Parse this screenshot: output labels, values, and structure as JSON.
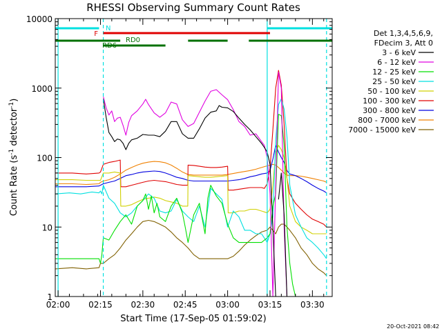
{
  "chart_data": {
    "type": "line",
    "title": "RHESSI Observing Summary Count Rates",
    "xlabel": "Start Time (17-Sep-05 01:59:02)",
    "ylabel": "Count Rate (s^-1 detector^-1)",
    "ylabel_main": "Count Rate (s",
    "ylabel_sup1": "-1",
    "ylabel_mid": " detector",
    "ylabel_sup2": "-1",
    "ylabel_end": ")",
    "x_tick_labels": [
      "02:00",
      "02:15",
      "02:30",
      "02:45",
      "03:00",
      "03:15",
      "03:30"
    ],
    "x_ticks_min": [
      0,
      15,
      30,
      45,
      60,
      75,
      90
    ],
    "xlim_min": [
      -1,
      97
    ],
    "y_scale": "log",
    "ylim": [
      1,
      10000
    ],
    "y_tick_labels": [
      "1",
      "10",
      "100",
      "1000",
      "10000"
    ],
    "y_tick_values": [
      1,
      10,
      100,
      1000,
      10000
    ],
    "timestamp": "20-Oct-2021 08:42",
    "legend": {
      "position": "right",
      "header": [
        "Det 1,3,4,5,6,9,",
        "FDecim 3, Att 0"
      ],
      "entries": [
        {
          "label": "3 - 6 keV",
          "color": "#000000"
        },
        {
          "label": "6 - 12 keV",
          "color": "#e000e0"
        },
        {
          "label": "12 - 25 keV",
          "color": "#00e000"
        },
        {
          "label": "25 - 50 keV",
          "color": "#00e0e0"
        },
        {
          "label": "50 - 100 keV",
          "color": "#d0d000"
        },
        {
          "label": "100 - 300 keV",
          "color": "#e00000"
        },
        {
          "label": "300 - 800 keV",
          "color": "#0000e0"
        },
        {
          "label": "800 - 7000 keV",
          "color": "#f08000"
        },
        {
          "label": "7000 - 15000 keV",
          "color": "#806000"
        }
      ]
    },
    "flag_bars": {
      "night": {
        "label": "N",
        "color": "#00e0e0",
        "segments": [
          [
            -1,
            14.5
          ],
          [
            74,
            97
          ]
        ]
      },
      "flare": {
        "label": "F",
        "color": "#e00000",
        "segments": [
          [
            16,
            75
          ]
        ]
      },
      "rd0": {
        "label": "RD0",
        "color": "#007000",
        "segments": [
          [
            -1,
            22
          ],
          [
            46,
            60
          ],
          [
            67.5,
            97
          ]
        ]
      },
      "rd6": {
        "label": "RD6",
        "color": "#007000",
        "segments": [
          [
            16,
            38
          ]
        ]
      }
    },
    "vertical_markers": [
      {
        "x": 0,
        "style": "solid",
        "color": "#00e0e0"
      },
      {
        "x": 16,
        "style": "dashed",
        "color": "#00e0e0"
      },
      {
        "x": 74,
        "style": "solid",
        "color": "#00e0e0"
      },
      {
        "x": 95,
        "style": "dashed",
        "color": "#00e0e0"
      }
    ],
    "series": [
      {
        "name": "3 - 6 keV",
        "color": "#000000",
        "x": [
          15.8,
          16,
          17,
          18,
          19,
          20,
          21,
          22,
          23,
          24,
          25,
          26,
          28,
          30,
          32,
          34,
          36,
          38,
          40,
          42,
          44,
          46,
          48,
          50,
          52,
          54,
          56,
          57,
          58,
          60,
          62,
          64,
          66,
          68,
          70,
          72,
          73,
          74,
          75,
          76,
          77,
          77.5,
          78,
          79,
          80,
          81
        ],
        "y": [
          null,
          700,
          380,
          230,
          200,
          170,
          185,
          180,
          160,
          130,
          160,
          180,
          190,
          215,
          210,
          210,
          200,
          240,
          330,
          330,
          220,
          190,
          190,
          260,
          370,
          450,
          470,
          560,
          530,
          520,
          460,
          370,
          300,
          250,
          200,
          160,
          140,
          120,
          80,
          10,
          1,
          null,
          25,
          60,
          15,
          1
        ]
      },
      {
        "name": "6 - 12 keV",
        "color": "#e000e0",
        "x": [
          15.8,
          16,
          17,
          18,
          19,
          20,
          21,
          22,
          23,
          24,
          25,
          26,
          28,
          30,
          31,
          32,
          34,
          36,
          38,
          40,
          42,
          44,
          46,
          48,
          50,
          52,
          54,
          56,
          58,
          60,
          62,
          64,
          66,
          68,
          70,
          72,
          73,
          74,
          75,
          76,
          77,
          78,
          79,
          80,
          81
        ],
        "y": [
          null,
          750,
          520,
          410,
          470,
          330,
          370,
          380,
          290,
          210,
          320,
          400,
          470,
          590,
          690,
          580,
          440,
          380,
          440,
          630,
          590,
          350,
          280,
          310,
          450,
          650,
          900,
          950,
          800,
          680,
          490,
          330,
          280,
          210,
          220,
          170,
          150,
          100,
          30,
          1,
          40,
          1700,
          1000,
          10,
          1
        ]
      },
      {
        "name": "12 - 25 keV",
        "color": "#00e000",
        "x": [
          -1,
          14.5,
          15,
          15.5,
          16,
          18,
          20,
          22,
          24,
          26,
          28,
          30,
          31,
          32,
          33,
          34,
          35,
          36,
          38,
          40,
          42,
          44,
          45,
          46,
          48,
          50,
          52,
          53,
          54,
          56,
          58,
          60,
          62,
          64,
          66,
          68,
          70,
          72,
          74,
          75,
          76,
          77,
          78,
          79,
          80,
          81,
          82,
          83,
          84,
          85
        ],
        "y": [
          3.5,
          3.5,
          3,
          4,
          7,
          6.5,
          9,
          12,
          15,
          11,
          20,
          24,
          30,
          18,
          28,
          16,
          22,
          14,
          12,
          20,
          26,
          16,
          10,
          6,
          15,
          22,
          8,
          26,
          40,
          28,
          22,
          11,
          7,
          6,
          6,
          6,
          6,
          6,
          7,
          8,
          20,
          30,
          420,
          400,
          150,
          10,
          3,
          1.5,
          1,
          null
        ]
      },
      {
        "name": "25 - 50 keV",
        "color": "#00e0e0",
        "x": [
          -1,
          4,
          8,
          12,
          14.5,
          15,
          15.5,
          16,
          18,
          20,
          22,
          24,
          26,
          28,
          30,
          32,
          34,
          36,
          38,
          40,
          42,
          44,
          46,
          48,
          50,
          52,
          54,
          56,
          58,
          60,
          62,
          64,
          66,
          68,
          70,
          72,
          74,
          75,
          76,
          77,
          78,
          79,
          80,
          81,
          82,
          84,
          86,
          88,
          90,
          92,
          94,
          95
        ],
        "y": [
          30,
          31,
          30,
          32,
          31,
          33,
          30,
          40,
          26,
          22,
          16,
          14,
          16,
          20,
          24,
          30,
          26,
          17,
          16,
          17,
          25,
          17,
          14,
          12,
          20,
          10,
          36,
          30,
          25,
          10,
          17,
          14,
          9,
          9,
          8,
          8,
          6,
          8,
          14,
          180,
          580,
          700,
          500,
          200,
          40,
          15,
          10,
          7,
          6,
          5,
          4,
          3.5
        ]
      },
      {
        "name": "50 - 100 keV",
        "color": "#d0d000",
        "x": [
          -1,
          5,
          10,
          14.5,
          15,
          16,
          18,
          20,
          22,
          22.2,
          24,
          26,
          28,
          30,
          32,
          34,
          36,
          38,
          40,
          42,
          44,
          45.9,
          46,
          48,
          50,
          52,
          54,
          56,
          58,
          60,
          60.2,
          62,
          64,
          66,
          68,
          70,
          72,
          74,
          75,
          76,
          77,
          78,
          79,
          80,
          81,
          82,
          84,
          86,
          88,
          90,
          92,
          94,
          95
        ],
        "y": [
          48,
          48,
          47,
          47,
          47,
          60,
          60,
          62,
          60,
          20,
          20,
          21,
          23,
          25,
          26,
          27,
          26,
          24,
          23,
          22,
          20,
          20,
          55,
          54,
          53,
          52,
          52,
          53,
          54,
          55,
          16,
          16,
          17,
          17,
          18,
          18,
          17,
          16,
          18,
          40,
          120,
          150,
          130,
          100,
          50,
          20,
          12,
          10,
          9,
          8,
          8,
          8,
          8
        ]
      },
      {
        "name": "100 - 300 keV",
        "color": "#e00000",
        "x": [
          -1,
          5,
          10,
          14.5,
          15,
          16,
          18,
          20,
          22,
          22.2,
          24,
          26,
          28,
          30,
          32,
          34,
          36,
          38,
          40,
          42,
          44,
          45.9,
          46,
          48,
          50,
          52,
          54,
          56,
          58,
          60,
          60.2,
          62,
          64,
          66,
          68,
          70,
          72,
          73,
          74,
          75,
          76,
          77,
          78,
          79,
          80,
          81,
          82,
          84,
          86,
          88,
          90,
          92,
          94,
          95
        ],
        "y": [
          60,
          60,
          58,
          60,
          62,
          80,
          85,
          88,
          92,
          38,
          38,
          40,
          42,
          44,
          46,
          47,
          46,
          45,
          43,
          41,
          40,
          40,
          78,
          77,
          75,
          73,
          72,
          72,
          73,
          75,
          34,
          34,
          35,
          36,
          37,
          37,
          37,
          36,
          42,
          70,
          250,
          1000,
          1800,
          1100,
          300,
          50,
          30,
          22,
          18,
          15,
          13,
          12,
          11,
          10
        ]
      },
      {
        "name": "300 - 800 keV",
        "color": "#0000e0",
        "x": [
          -1,
          5,
          10,
          14.5,
          15,
          16,
          18,
          20,
          22,
          24,
          26,
          28,
          30,
          32,
          34,
          36,
          38,
          40,
          42,
          44,
          46,
          48,
          50,
          52,
          54,
          56,
          58,
          60,
          62,
          64,
          66,
          68,
          70,
          72,
          74,
          75,
          76,
          77,
          78,
          79,
          80,
          81,
          82,
          84,
          86,
          88,
          90,
          92,
          94,
          95
        ],
        "y": [
          38,
          38,
          38,
          39,
          40,
          42,
          44,
          46,
          50,
          55,
          57,
          60,
          62,
          63,
          64,
          63,
          60,
          56,
          52,
          50,
          47,
          46,
          46,
          46,
          46,
          46,
          46,
          46,
          47,
          48,
          50,
          53,
          55,
          58,
          60,
          65,
          95,
          150,
          120,
          100,
          85,
          65,
          58,
          55,
          50,
          45,
          40,
          36,
          33,
          31
        ]
      },
      {
        "name": "800 - 7000 keV",
        "color": "#f08000",
        "x": [
          -1,
          5,
          10,
          14.5,
          15,
          16,
          18,
          20,
          22,
          24,
          26,
          28,
          30,
          32,
          34,
          36,
          38,
          40,
          42,
          44,
          46,
          48,
          50,
          52,
          54,
          56,
          58,
          60,
          62,
          64,
          66,
          68,
          70,
          72,
          74,
          75,
          76,
          77,
          78,
          79,
          80,
          81,
          82,
          84,
          86,
          88,
          90,
          92,
          94,
          95
        ],
        "y": [
          42,
          42,
          41,
          42,
          44,
          46,
          48,
          52,
          58,
          66,
          72,
          78,
          83,
          86,
          88,
          87,
          84,
          78,
          70,
          62,
          57,
          56,
          56,
          56,
          56,
          56,
          56,
          57,
          59,
          61,
          63,
          65,
          68,
          72,
          76,
          78,
          80,
          78,
          72,
          66,
          60,
          56,
          55,
          55,
          54,
          52,
          50,
          48,
          46,
          44
        ]
      },
      {
        "name": "7000 - 15000 keV",
        "color": "#806000",
        "x": [
          -1,
          5,
          10,
          14.5,
          15,
          16,
          18,
          20,
          22,
          24,
          26,
          28,
          30,
          32,
          34,
          36,
          38,
          40,
          42,
          44,
          46,
          48,
          50,
          52,
          54,
          56,
          58,
          60,
          62,
          64,
          66,
          68,
          70,
          72,
          74,
          75,
          76,
          77,
          78,
          79,
          80,
          81,
          82,
          84,
          86,
          88,
          90,
          92,
          94,
          95
        ],
        "y": [
          2.5,
          2.6,
          2.5,
          2.6,
          3,
          3,
          3.5,
          4,
          5,
          6.5,
          8,
          10,
          12,
          12.5,
          12,
          11,
          10,
          8.5,
          7,
          6,
          5,
          4,
          3.5,
          3.5,
          3.5,
          3.5,
          3.5,
          3.5,
          3.8,
          4.5,
          5.5,
          6.5,
          7.5,
          8.5,
          9,
          10,
          9,
          8,
          10,
          11,
          11,
          10,
          9,
          7,
          5,
          4,
          3,
          2.5,
          2.2,
          2
        ]
      }
    ]
  }
}
